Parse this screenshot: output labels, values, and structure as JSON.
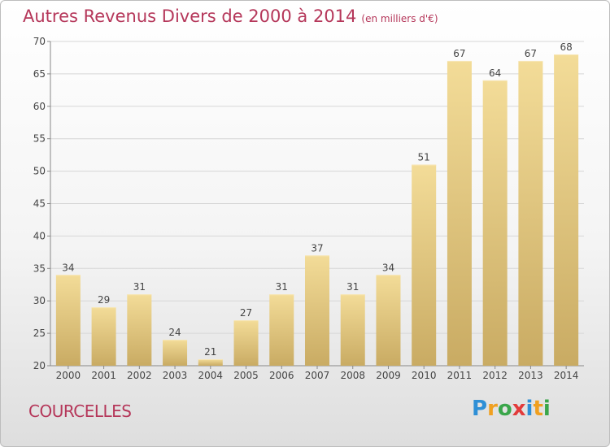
{
  "title": {
    "main": "Autres Revenus Divers de 2000 à 2014",
    "sub": "(en milliers d'€)"
  },
  "footer": {
    "location": "COURCELLES"
  },
  "brand": {
    "letters": [
      {
        "ch": "P",
        "color": "#2e8fd6"
      },
      {
        "ch": "r",
        "color": "#f0a020"
      },
      {
        "ch": "o",
        "color": "#3aa64a"
      },
      {
        "ch": "x",
        "color": "#e23b3b"
      },
      {
        "ch": "i",
        "color": "#2e8fd6"
      },
      {
        "ch": "t",
        "color": "#f0a020"
      },
      {
        "ch": "i",
        "color": "#3aa64a"
      }
    ]
  },
  "chart_data": {
    "type": "bar",
    "categories": [
      "2000",
      "2001",
      "2002",
      "2003",
      "2004",
      "2005",
      "2006",
      "2007",
      "2008",
      "2009",
      "2010",
      "2011",
      "2012",
      "2013",
      "2014"
    ],
    "values": [
      34,
      29,
      31,
      24,
      21,
      27,
      31,
      37,
      31,
      34,
      51,
      67,
      64,
      67,
      68
    ],
    "ylim": [
      20,
      70
    ],
    "yticks": [
      20,
      25,
      30,
      35,
      40,
      45,
      50,
      55,
      60,
      65,
      70
    ],
    "grid": true,
    "bar_color_top": "#f3dc98",
    "bar_color_bottom": "#c9ab63"
  }
}
